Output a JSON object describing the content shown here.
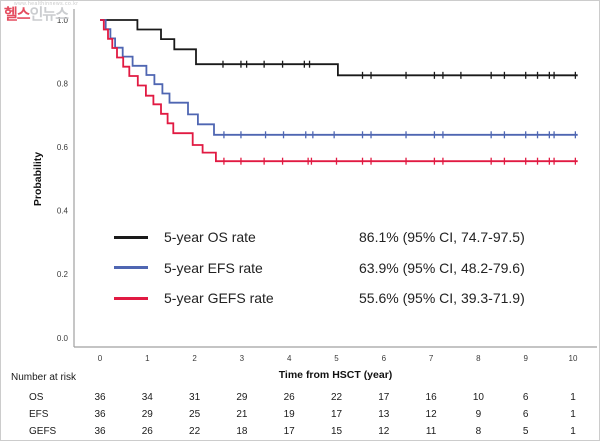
{
  "watermark": {
    "url_text": "www.healthinnews.co.kr",
    "brand_red": "헬스",
    "brand_gray": "인뉴스"
  },
  "legend": {
    "items": [
      {
        "label": "5-year OS rate",
        "value": "86.1% (95% CI, 74.7-97.5)",
        "color": "#1a1a1a"
      },
      {
        "label": "5-year EFS rate",
        "value": "63.9% (95% CI, 48.2-79.6)",
        "color": "#4f66b2"
      },
      {
        "label": "5-year GEFS rate",
        "value": "55.6% (95% CI, 39.3-71.9)",
        "color": "#e11a42"
      }
    ]
  },
  "risk_table": {
    "title": "Number at risk",
    "time_points": [
      0,
      1,
      2,
      3,
      4,
      5,
      6,
      7,
      8,
      9,
      10
    ],
    "rows": [
      {
        "label": "OS",
        "values": [
          36,
          34,
          31,
          29,
          26,
          22,
          17,
          16,
          10,
          6,
          1
        ]
      },
      {
        "label": "EFS",
        "values": [
          36,
          29,
          25,
          21,
          19,
          17,
          13,
          12,
          9,
          6,
          1
        ]
      },
      {
        "label": "GEFS",
        "values": [
          36,
          26,
          22,
          18,
          17,
          15,
          12,
          11,
          8,
          5,
          1
        ]
      }
    ]
  },
  "chart_data": {
    "type": "line",
    "subtype": "kaplan-meier-step",
    "title": "",
    "xlabel": "Time from HSCT (year)",
    "ylabel": "Probability",
    "xlim": [
      0,
      10
    ],
    "ylim": [
      0.0,
      1.0
    ],
    "x_ticks": [
      0,
      1,
      2,
      3,
      4,
      5,
      6,
      7,
      8,
      9,
      10
    ],
    "y_ticks": [
      "0.0",
      "0.2",
      "0.4",
      "0.6",
      "0.8",
      "1.0"
    ],
    "grid": false,
    "legend_position": "inside-lower-left",
    "series": [
      {
        "name": "OS",
        "color": "#1a1a1a",
        "steps": [
          [
            0,
            1.0
          ],
          [
            0.79,
            0.97
          ],
          [
            1.29,
            0.94
          ],
          [
            1.57,
            0.908
          ],
          [
            2.03,
            0.861
          ],
          [
            5.03,
            0.826
          ]
        ],
        "end": 10.1,
        "censor_ticks": [
          2.6,
          2.98,
          3.1,
          3.47,
          3.86,
          4.32,
          4.43,
          5.55,
          5.73,
          6.47,
          7.07,
          7.25,
          7.63,
          8.27,
          8.55,
          9.0,
          9.25,
          9.5,
          9.6,
          10.05
        ]
      },
      {
        "name": "EFS",
        "color": "#4f66b2",
        "steps": [
          [
            0,
            1.0
          ],
          [
            0.12,
            0.971
          ],
          [
            0.22,
            0.942
          ],
          [
            0.32,
            0.913
          ],
          [
            0.48,
            0.885
          ],
          [
            0.69,
            0.856
          ],
          [
            0.98,
            0.827
          ],
          [
            1.15,
            0.798
          ],
          [
            1.32,
            0.769
          ],
          [
            1.47,
            0.74
          ],
          [
            1.86,
            0.703
          ],
          [
            2.07,
            0.672
          ],
          [
            2.41,
            0.639
          ]
        ],
        "end": 10.1,
        "censor_ticks": [
          2.62,
          2.98,
          3.5,
          3.88,
          4.35,
          4.5,
          4.95,
          5.55,
          5.73,
          6.47,
          7.07,
          7.25,
          8.27,
          8.55,
          9.0,
          9.25,
          9.5,
          9.6,
          10.05
        ]
      },
      {
        "name": "GEFS",
        "color": "#e11a42",
        "steps": [
          [
            0,
            1.0
          ],
          [
            0.08,
            0.97
          ],
          [
            0.17,
            0.941
          ],
          [
            0.26,
            0.912
          ],
          [
            0.36,
            0.882
          ],
          [
            0.49,
            0.853
          ],
          [
            0.62,
            0.824
          ],
          [
            0.8,
            0.794
          ],
          [
            0.97,
            0.762
          ],
          [
            1.13,
            0.735
          ],
          [
            1.29,
            0.705
          ],
          [
            1.43,
            0.675
          ],
          [
            1.55,
            0.644
          ],
          [
            1.96,
            0.607
          ],
          [
            2.17,
            0.583
          ],
          [
            2.45,
            0.556
          ]
        ],
        "end": 10.1,
        "censor_ticks": [
          2.62,
          2.98,
          3.47,
          3.86,
          4.4,
          4.47,
          5.0,
          5.55,
          5.73,
          6.47,
          7.07,
          7.25,
          8.27,
          8.55,
          9.0,
          9.25,
          9.5,
          9.6,
          10.05
        ]
      }
    ]
  }
}
